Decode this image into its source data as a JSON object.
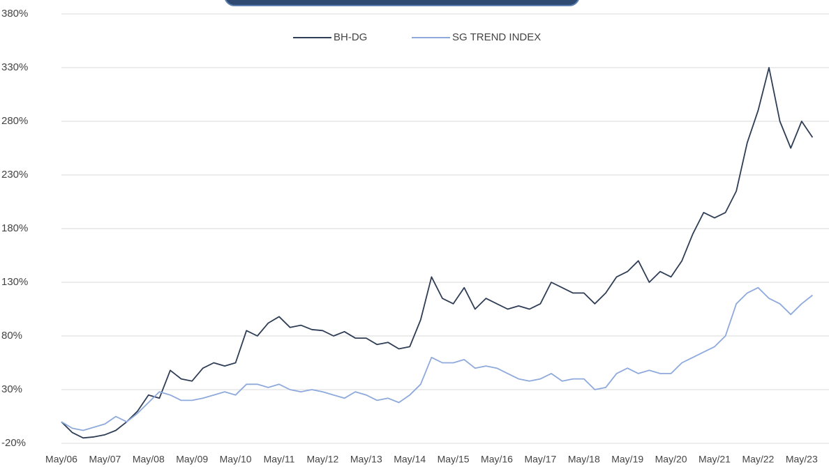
{
  "chart_data": {
    "type": "line",
    "categories": [
      "May/06",
      null,
      null,
      null,
      "May/07",
      null,
      null,
      null,
      "May/08",
      null,
      null,
      null,
      "May/09",
      null,
      null,
      null,
      "May/10",
      null,
      null,
      null,
      "May/11",
      null,
      null,
      null,
      "May/12",
      null,
      null,
      null,
      "May/13",
      null,
      null,
      null,
      "May/14",
      null,
      null,
      null,
      "May/15",
      null,
      null,
      null,
      "May/16",
      null,
      null,
      null,
      "May/17",
      null,
      null,
      null,
      "May/18",
      null,
      null,
      null,
      "May/19",
      null,
      null,
      null,
      "May/20",
      null,
      null,
      null,
      "May/21",
      null,
      null,
      null,
      "May/22",
      null,
      null,
      null,
      "May/23",
      null
    ],
    "series": [
      {
        "name": "BH-DG",
        "color": "#2e3d55",
        "values": [
          0,
          -10,
          -15,
          -14,
          -12,
          -8,
          0,
          10,
          25,
          22,
          48,
          40,
          38,
          50,
          55,
          52,
          55,
          85,
          80,
          92,
          98,
          88,
          90,
          86,
          85,
          80,
          84,
          78,
          78,
          72,
          74,
          68,
          70,
          95,
          135,
          115,
          110,
          125,
          105,
          115,
          110,
          105,
          108,
          105,
          110,
          130,
          125,
          120,
          120,
          110,
          120,
          135,
          140,
          150,
          130,
          140,
          135,
          150,
          175,
          195,
          190,
          195,
          215,
          260,
          290,
          330,
          280,
          255,
          280,
          265
        ]
      },
      {
        "name": "SG TREND INDEX",
        "color": "#8ea9db",
        "values": [
          0,
          -6,
          -8,
          -5,
          -2,
          5,
          0,
          8,
          18,
          28,
          25,
          20,
          20,
          22,
          25,
          28,
          25,
          35,
          35,
          32,
          35,
          30,
          28,
          30,
          28,
          25,
          22,
          28,
          25,
          20,
          22,
          18,
          25,
          35,
          60,
          55,
          55,
          58,
          50,
          52,
          50,
          45,
          40,
          38,
          40,
          45,
          38,
          40,
          40,
          30,
          32,
          45,
          50,
          45,
          48,
          45,
          45,
          55,
          60,
          65,
          70,
          80,
          110,
          120,
          125,
          115,
          110,
          100,
          110,
          118
        ]
      }
    ],
    "ylim": [
      -20,
      380
    ],
    "yticks": [
      {
        "value": -20,
        "label": "-20%"
      },
      {
        "value": 30,
        "label": "30%"
      },
      {
        "value": 80,
        "label": "80%"
      },
      {
        "value": 130,
        "label": "130%"
      },
      {
        "value": 180,
        "label": "180%"
      },
      {
        "value": 230,
        "label": "230%"
      },
      {
        "value": 280,
        "label": "280%"
      },
      {
        "value": 330,
        "label": "330%"
      },
      {
        "value": 380,
        "label": "380%"
      }
    ],
    "grid": true,
    "legend": "top"
  }
}
